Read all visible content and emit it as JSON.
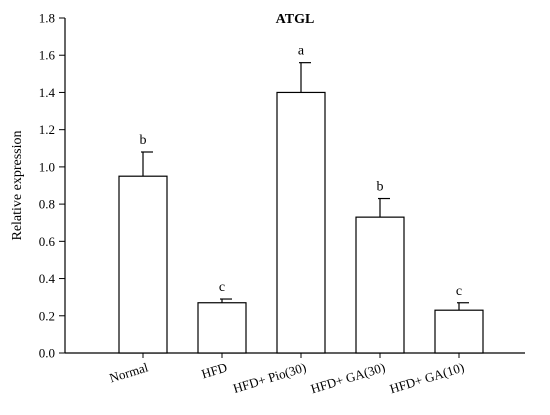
{
  "chart_data": {
    "type": "bar",
    "title": "ATGL",
    "xlabel": "",
    "ylabel": "Relative expression",
    "ylim": [
      0,
      1.8
    ],
    "yticks": [
      "0.0",
      "0.2",
      "0.4",
      "0.6",
      "0.8",
      "1.0",
      "1.2",
      "1.4",
      "1.6",
      "1.8"
    ],
    "categories": [
      "Normal",
      "HFD",
      "HFD+ Pio(30)",
      "HFD+ GA(30)",
      "HFD+ GA(10)"
    ],
    "values": [
      0.95,
      0.27,
      1.4,
      0.73,
      0.23
    ],
    "errors": [
      0.13,
      0.02,
      0.16,
      0.1,
      0.04
    ],
    "significance": [
      "b",
      "c",
      "a",
      "b",
      "c"
    ],
    "grid": false,
    "legend": "none",
    "colors": {
      "bar_fill": "#ffffff",
      "bar_stroke": "#000000",
      "axis": "#000000"
    }
  }
}
